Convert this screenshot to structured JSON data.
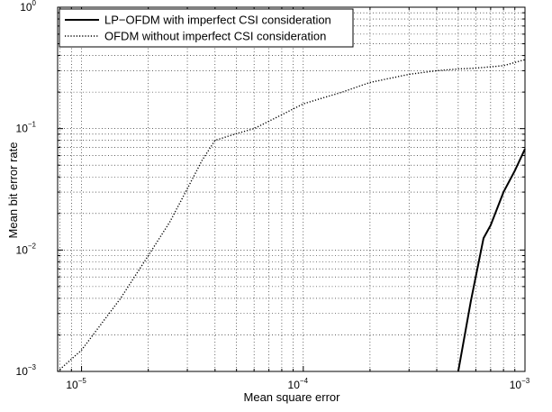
{
  "chart_data": {
    "type": "line",
    "xlabel": "Mean square error",
    "ylabel": "Mean bit error rate",
    "xscale": "log",
    "yscale": "log",
    "xlim": [
      7.8e-06,
      0.001
    ],
    "ylim": [
      0.001,
      1
    ],
    "grid": true,
    "legend_position": "top-left",
    "x_ticks": [
      {
        "value": 1e-05,
        "base": "10",
        "exp": "−5"
      },
      {
        "value": 0.0001,
        "base": "10",
        "exp": "−4"
      },
      {
        "value": 0.001,
        "base": "10",
        "exp": "−3"
      }
    ],
    "y_ticks": [
      {
        "value": 0.001,
        "base": "10",
        "exp": "−3"
      },
      {
        "value": 0.01,
        "base": "10",
        "exp": "−2"
      },
      {
        "value": 0.1,
        "base": "10",
        "exp": "−1"
      },
      {
        "value": 1,
        "base": "10",
        "exp": "0"
      }
    ],
    "series": [
      {
        "name": "LP−OFDM with imperfect CSI consideration",
        "style": "solid",
        "color": "#000000",
        "x": [
          0.0005,
          0.00057,
          0.00065,
          0.0007,
          0.0008,
          0.0009,
          0.001
        ],
        "y": [
          0.001,
          0.0038,
          0.0125,
          0.016,
          0.03,
          0.045,
          0.068
        ]
      },
      {
        "name": "OFDM without imperfect CSI consideration",
        "style": "dotted",
        "color": "#000000",
        "x": [
          7.8e-06,
          1e-05,
          1.5e-05,
          2e-05,
          2.5e-05,
          3e-05,
          3.5e-05,
          4e-05,
          5e-05,
          6e-05,
          8e-05,
          0.0001,
          0.00015,
          0.0002,
          0.0003,
          0.0004,
          0.0005,
          0.0006,
          0.0008,
          0.001
        ],
        "y": [
          0.001,
          0.0015,
          0.004,
          0.009,
          0.017,
          0.032,
          0.055,
          0.08,
          0.091,
          0.1,
          0.13,
          0.16,
          0.2,
          0.24,
          0.28,
          0.3,
          0.31,
          0.315,
          0.33,
          0.37
        ]
      }
    ]
  }
}
